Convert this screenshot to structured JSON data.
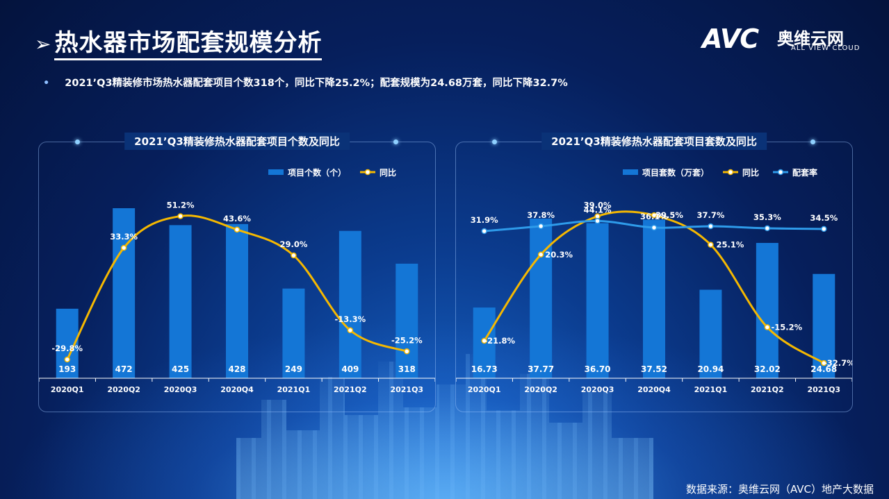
{
  "page": {
    "title": "热水器市场配套规模分析",
    "title_arrow": "➢",
    "bullet_marker": "•",
    "bullet": "2021’Q3精装修市场热水器配套项目个数318个，同比下降25.2%；配套规模为24.68万套，同比下降32.7%",
    "source": "数据来源：奥维云网（AVC）地产大数据",
    "logo": {
      "mark": "AVC",
      "cn": "奥维云网",
      "en": "ALL VIEW CLOUD"
    }
  },
  "colors": {
    "bar": "#1476d6",
    "yoy": "#f5b800",
    "rate": "#2e9bea",
    "axis": "#ffffff"
  },
  "chart_data": [
    {
      "type": "bar",
      "title": "2021’Q3精装修热水器配套项目个数及同比",
      "categories": [
        "2020Q1",
        "2020Q2",
        "2020Q3",
        "2020Q4",
        "2021Q1",
        "2021Q2",
        "2021Q3"
      ],
      "series": [
        {
          "name": "项目个数（个）",
          "type": "bar",
          "values": [
            193,
            472,
            425,
            428,
            249,
            409,
            318
          ],
          "labels": [
            "193",
            "472",
            "425",
            "428",
            "249",
            "409",
            "318"
          ]
        },
        {
          "name": "同比",
          "type": "line",
          "values": [
            -29.8,
            33.3,
            51.2,
            43.6,
            29.0,
            -13.3,
            -25.2
          ],
          "labels": [
            "-29.8%",
            "33.3%",
            "51.2%",
            "43.6%",
            "29.0%",
            "-13.3%",
            "-25.2%"
          ]
        }
      ],
      "legend": "top-right"
    },
    {
      "type": "bar",
      "title": "2021’Q3精装修热水器配套项目套数及同比",
      "categories": [
        "2020Q1",
        "2020Q2",
        "2020Q3",
        "2020Q4",
        "2021Q1",
        "2021Q2",
        "2021Q3"
      ],
      "series": [
        {
          "name": "项目套数（万套）",
          "type": "bar",
          "values": [
            16.73,
            37.77,
            36.7,
            37.52,
            20.94,
            32.02,
            24.68
          ],
          "labels": [
            "16.73",
            "37.77",
            "36.70",
            "37.52",
            "20.94",
            "32.02",
            "24.68"
          ]
        },
        {
          "name": "同比",
          "type": "line",
          "values": [
            -21.8,
            20.3,
            39.0,
            39.5,
            25.1,
            -15.2,
            -32.7
          ],
          "labels": [
            "-21.8%",
            "20.3%",
            "39.0%",
            "39.5%",
            "25.1%",
            "-15.2%",
            "-32.7%"
          ]
        },
        {
          "name": "配套率",
          "type": "line",
          "values": [
            31.9,
            37.8,
            44.1,
            36.1,
            37.7,
            35.3,
            34.5
          ],
          "labels": [
            "31.9%",
            "37.8%",
            "44.1%",
            "36.1%",
            "37.7%",
            "35.3%",
            "34.5%"
          ]
        }
      ],
      "legend": "top-right"
    }
  ]
}
